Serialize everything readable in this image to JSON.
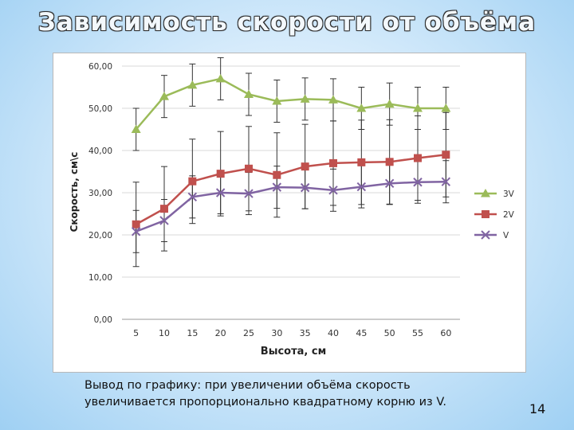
{
  "slide": {
    "title": "Зависимость скорости от объёма",
    "conclusion_line1": "Вывод по графику: при увеличении объёма скорость",
    "conclusion_line2": "увеличивается пропорционально квадратному корню из V.",
    "page_number": "14"
  },
  "chart_data": {
    "type": "line",
    "title": "",
    "xlabel": "Высота, см",
    "ylabel": "Скорость, см\\с",
    "categories": [
      "5",
      "10",
      "15",
      "20",
      "25",
      "30",
      "35",
      "40",
      "45",
      "50",
      "55",
      "60"
    ],
    "ylim": [
      0,
      60
    ],
    "yticks": [
      0,
      10,
      20,
      30,
      40,
      50,
      60
    ],
    "ytick_labels": [
      "0,00",
      "10,00",
      "20,00",
      "30,00",
      "40,00",
      "50,00",
      "60,00"
    ],
    "grid": "horizontal",
    "legend_position": "right",
    "series": [
      {
        "name": "3V",
        "color": "#9bbb59",
        "marker": "triangle",
        "values": [
          45.0,
          52.8,
          55.5,
          57.0,
          53.3,
          51.7,
          52.2,
          52.0,
          50.0,
          51.0,
          50.0,
          50.0
        ],
        "error": 5
      },
      {
        "name": "2V",
        "color": "#c0504d",
        "marker": "square",
        "values": [
          22.5,
          26.2,
          32.7,
          34.5,
          35.7,
          34.2,
          36.2,
          37.0,
          37.2,
          37.3,
          38.2,
          39.0
        ],
        "error": 10
      },
      {
        "name": "V",
        "color": "#8064a2",
        "marker": "x",
        "values": [
          20.8,
          23.4,
          29.0,
          30.0,
          29.8,
          31.3,
          31.2,
          30.6,
          31.4,
          32.2,
          32.5,
          32.6
        ],
        "error": 5
      }
    ]
  }
}
